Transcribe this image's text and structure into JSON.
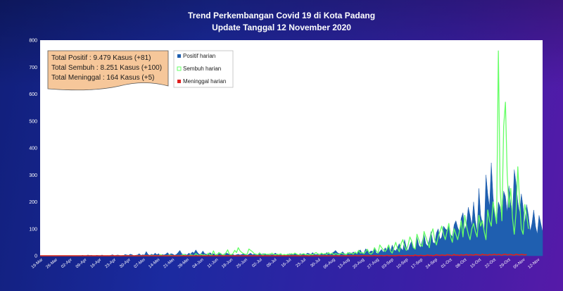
{
  "title": {
    "line1": "Trend Perkembangan Covid 19 di Kota Padang",
    "line2": "Update Tanggal  12 November 2020"
  },
  "summary": {
    "positif": "Total Positif     : 9.479 Kasus (+81)",
    "sembuh": "Total Sembuh  : 8.251 Kasus (+100)",
    "meninggal": "Total Meninggal  :  164 Kasus  (+5)"
  },
  "colors": {
    "positif": "#1f5fb0",
    "sembuh": "#66ff66",
    "meninggal": "#e02020",
    "summary_box": "#f6c79a"
  },
  "chart_data": {
    "type": "area",
    "title": "Trend Perkembangan Covid 19 di Kota Padang",
    "ylim": [
      0,
      800
    ],
    "y_ticks": [
      0,
      100,
      200,
      300,
      400,
      500,
      600,
      700,
      800
    ],
    "x_tick_labels": [
      "19-Mar",
      "26-Mar",
      "02-Apr",
      "09-Apr",
      "16-Apr",
      "23-Apr",
      "30-Apr",
      "07-Mei",
      "14-Mei",
      "21-Mei",
      "28-Mei",
      "04-Jun",
      "11-Jun",
      "18-Jun",
      "25-Jun",
      "02-Jul",
      "09-Jul",
      "16-Jul",
      "23-Jul",
      "30-Jul",
      "06-Aug",
      "13-Aug",
      "20-Aug",
      "27-Aug",
      "03-Sep",
      "10-Sep",
      "17-Sep",
      "24-Sep",
      "01-Oct",
      "08-Oct",
      "15-Oct",
      "22-Oct",
      "29-Oct",
      "05-Nov",
      "12-Nov"
    ],
    "legend_position": "top-center",
    "series": [
      {
        "name": "Positif harian",
        "style": "area",
        "values": [
          0,
          0,
          0,
          0,
          0,
          0,
          0,
          0,
          0,
          0,
          0,
          0,
          0,
          0,
          0,
          0,
          0,
          0,
          0,
          0,
          0,
          0,
          0,
          0,
          2,
          0,
          0,
          3,
          1,
          2,
          0,
          0,
          2,
          1,
          0,
          3,
          0,
          0,
          1,
          0,
          2,
          4,
          0,
          2,
          3,
          1,
          0,
          0,
          5,
          3,
          2,
          6,
          4,
          0,
          2,
          3,
          8,
          2,
          4,
          3,
          16,
          5,
          2,
          6,
          3,
          10,
          4,
          8,
          0,
          5,
          3,
          6,
          12,
          4,
          8,
          6,
          2,
          5,
          12,
          20,
          8,
          4,
          6,
          3,
          10,
          6,
          14,
          10,
          22,
          12,
          5,
          8,
          18,
          8,
          6,
          5,
          12,
          6,
          8,
          4,
          6,
          8,
          10,
          4,
          6,
          12,
          8,
          6,
          4,
          5,
          2,
          4,
          6,
          3,
          5,
          8,
          4,
          2,
          6,
          10,
          4,
          6,
          3,
          5,
          12,
          4,
          8,
          6,
          5,
          3,
          8,
          4,
          6,
          10,
          5,
          6,
          4,
          3,
          5,
          2,
          4,
          8,
          4,
          6,
          10,
          5,
          3,
          8,
          5,
          6,
          4,
          10,
          8,
          5,
          12,
          6,
          4,
          8,
          6,
          10,
          5,
          6,
          12,
          8,
          6,
          10,
          14,
          20,
          12,
          8,
          10,
          15,
          8,
          6,
          10,
          12,
          8,
          14,
          10,
          8,
          18,
          22,
          8,
          10,
          26,
          20,
          12,
          18,
          16,
          30,
          10,
          8,
          16,
          24,
          12,
          30,
          20,
          35,
          14,
          40,
          22,
          18,
          30,
          45,
          28,
          20,
          60,
          30,
          18,
          40,
          55,
          30,
          25,
          70,
          40,
          30,
          55,
          80,
          45,
          35,
          60,
          90,
          50,
          45,
          85,
          100,
          60,
          70,
          110,
          100,
          95,
          120,
          80,
          70,
          115,
          130,
          105,
          90,
          140,
          160,
          95,
          120,
          180,
          150,
          110,
          200,
          130,
          90,
          250,
          150,
          120,
          80,
          300,
          230,
          180,
          345,
          220,
          150,
          110,
          200,
          180,
          130,
          240,
          220,
          160,
          260,
          190,
          150,
          320,
          270,
          200,
          160,
          230,
          180,
          120,
          190,
          150,
          90,
          120,
          170,
          110,
          80,
          150,
          120,
          90
        ]
      },
      {
        "name": "Sembuh harian",
        "style": "line",
        "values": [
          0,
          0,
          0,
          0,
          0,
          0,
          0,
          0,
          0,
          0,
          0,
          0,
          0,
          0,
          0,
          0,
          0,
          0,
          0,
          0,
          0,
          0,
          0,
          0,
          0,
          0,
          0,
          0,
          0,
          0,
          0,
          0,
          0,
          0,
          0,
          0,
          0,
          0,
          0,
          0,
          0,
          0,
          0,
          0,
          0,
          0,
          0,
          1,
          0,
          0,
          0,
          0,
          0,
          0,
          0,
          0,
          0,
          0,
          0,
          0,
          0,
          0,
          0,
          2,
          0,
          0,
          0,
          0,
          4,
          2,
          0,
          0,
          0,
          3,
          2,
          0,
          0,
          0,
          0,
          0,
          2,
          5,
          3,
          0,
          0,
          4,
          2,
          0,
          8,
          3,
          0,
          6,
          2,
          4,
          0,
          10,
          3,
          2,
          18,
          4,
          2,
          12,
          8,
          4,
          3,
          10,
          22,
          6,
          4,
          8,
          20,
          12,
          30,
          18,
          12,
          8,
          5,
          6,
          25,
          20,
          15,
          8,
          6,
          4,
          10,
          6,
          3,
          8,
          5,
          6,
          4,
          10,
          5,
          3,
          6,
          4,
          8,
          2,
          5,
          3,
          6,
          4,
          8,
          5,
          10,
          6,
          4,
          3,
          6,
          8,
          4,
          5,
          2,
          6,
          4,
          8,
          12,
          6,
          4,
          10,
          6,
          8,
          5,
          12,
          6,
          10,
          4,
          8,
          6,
          4,
          10,
          8,
          6,
          4,
          12,
          8,
          10,
          6,
          14,
          8,
          20,
          10,
          12,
          8,
          16,
          24,
          10,
          6,
          12,
          30,
          18,
          10,
          40,
          30,
          22,
          16,
          25,
          40,
          18,
          10,
          30,
          50,
          28,
          15,
          45,
          60,
          35,
          20,
          40,
          70,
          55,
          30,
          25,
          80,
          60,
          40,
          35,
          90,
          70,
          50,
          30,
          80,
          100,
          60,
          40,
          70,
          90,
          110,
          80,
          60,
          90,
          120,
          70,
          50,
          100,
          80,
          60,
          90,
          130,
          70,
          150,
          110,
          80,
          60,
          100,
          120,
          90,
          70,
          150,
          110,
          130,
          90,
          60,
          170,
          130,
          110,
          200,
          160,
          120,
          760,
          250,
          130,
          480,
          570,
          300,
          180,
          250,
          140,
          80,
          160,
          330,
          200,
          100,
          80,
          190,
          150,
          100
        ]
      },
      {
        "name": "Meninggal harian",
        "style": "line",
        "values": [
          0,
          0,
          0,
          0,
          0,
          0,
          0,
          0,
          0,
          0,
          0,
          0,
          0,
          0,
          0,
          0,
          0,
          0,
          0,
          0,
          0,
          0,
          0,
          0,
          0,
          0,
          0,
          0,
          0,
          0,
          0,
          0,
          0,
          0,
          0,
          0,
          0,
          0,
          0,
          0,
          0,
          1,
          0,
          0,
          0,
          0,
          0,
          0,
          0,
          0,
          0,
          0,
          0,
          0,
          0,
          0,
          0,
          0,
          0,
          0,
          1,
          0,
          0,
          0,
          0,
          0,
          0,
          0,
          0,
          0,
          0,
          0,
          0,
          0,
          0,
          0,
          0,
          0,
          0,
          0,
          0,
          0,
          0,
          0,
          0,
          0,
          0,
          0,
          0,
          0,
          0,
          0,
          0,
          0,
          0,
          0,
          0,
          0,
          0,
          0,
          0,
          0,
          0,
          0,
          0,
          0,
          0,
          0,
          0,
          0,
          0,
          0,
          0,
          0,
          0,
          0,
          0,
          0,
          0,
          0,
          0,
          0,
          0,
          0,
          0,
          0,
          0,
          0,
          0,
          0,
          0,
          0,
          0,
          0,
          0,
          0,
          0,
          0,
          0,
          0,
          0,
          0,
          0,
          0,
          0,
          0,
          0,
          0,
          0,
          0,
          0,
          0,
          0,
          0,
          0,
          0,
          0,
          0,
          0,
          0,
          0,
          0,
          0,
          0,
          0,
          0,
          0,
          0,
          0,
          0,
          0,
          0,
          0,
          0,
          0,
          0,
          0,
          0,
          1,
          0,
          0,
          0,
          0,
          1,
          0,
          0,
          0,
          0,
          0,
          1,
          0,
          0,
          0,
          1,
          0,
          0,
          2,
          0,
          0,
          1,
          0,
          0,
          1,
          2,
          0,
          1,
          0,
          1,
          2,
          0,
          1,
          0,
          3,
          1,
          0,
          2,
          1,
          0,
          1,
          3,
          1,
          2,
          0,
          1,
          4,
          2,
          1,
          3,
          2,
          1,
          4,
          3,
          2,
          1,
          5,
          2,
          3,
          1,
          4,
          2,
          3,
          5,
          2,
          4,
          3,
          2,
          5,
          4,
          3,
          2,
          6,
          3,
          4,
          2,
          5,
          3,
          4,
          6,
          3,
          5,
          4,
          2,
          5,
          6,
          3,
          4,
          5,
          3,
          2,
          6,
          4,
          3,
          5,
          4,
          3,
          5
        ]
      }
    ]
  }
}
